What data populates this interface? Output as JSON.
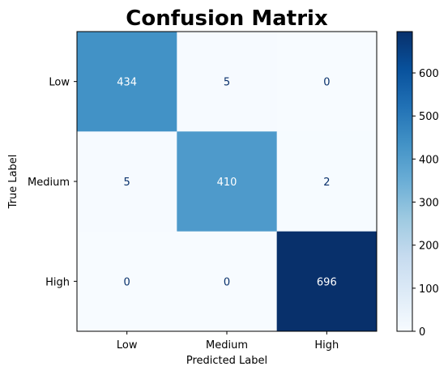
{
  "chart_data": {
    "type": "heatmap",
    "title": "Confusion Matrix",
    "xlabel": "Predicted Label",
    "ylabel": "True Label",
    "x_categories": [
      "Low",
      "Medium",
      "High"
    ],
    "y_categories": [
      "Low",
      "Medium",
      "High"
    ],
    "values": [
      [
        434,
        5,
        0
      ],
      [
        5,
        410,
        2
      ],
      [
        0,
        0,
        696
      ]
    ],
    "colormap": "Blues",
    "colorbar": {
      "range": [
        0,
        696
      ],
      "ticks": [
        0,
        100,
        200,
        300,
        400,
        500,
        600
      ],
      "tick_labels": [
        "0",
        "100",
        "200",
        "300",
        "400",
        "500",
        "600"
      ]
    },
    "colors": {
      "low": "#f7fbff",
      "mid": "#4292c6",
      "high": "#08306b",
      "text_light": "#ffffff",
      "text_dark": "#08306b"
    }
  }
}
